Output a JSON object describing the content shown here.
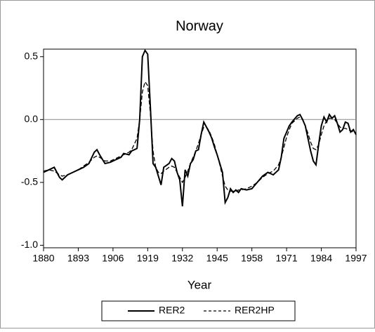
{
  "chart_data": {
    "type": "line",
    "title": "Norway",
    "x_label": "Year",
    "x": [
      1880,
      1882,
      1884,
      1886,
      1887,
      1889,
      1891,
      1893,
      1895,
      1897,
      1899,
      1900,
      1901,
      1903,
      1905,
      1907,
      1909,
      1910,
      1912,
      1913,
      1915,
      1916,
      1917,
      1918,
      1919,
      1920,
      1921,
      1922,
      1923,
      1924,
      1925,
      1927,
      1928,
      1929,
      1930,
      1931,
      1932,
      1933,
      1934,
      1935,
      1936,
      1937,
      1938,
      1939,
      1940,
      1941,
      1942,
      1943,
      1944,
      1945,
      1946,
      1947,
      1948,
      1949,
      1950,
      1951,
      1952,
      1953,
      1954,
      1956,
      1958,
      1960,
      1962,
      1964,
      1966,
      1968,
      1969,
      1970,
      1971,
      1972,
      1973,
      1975,
      1976,
      1977,
      1978,
      1979,
      1980,
      1981,
      1982,
      1983,
      1984,
      1985,
      1986,
      1987,
      1988,
      1989,
      1990,
      1991,
      1992,
      1993,
      1994,
      1995,
      1996,
      1997
    ],
    "series": [
      {
        "name": "RER2",
        "color": "#000000",
        "style": "solid",
        "values": [
          -0.42,
          -0.4,
          -0.38,
          -0.46,
          -0.48,
          -0.44,
          -0.42,
          -0.4,
          -0.38,
          -0.35,
          -0.26,
          -0.24,
          -0.28,
          -0.35,
          -0.34,
          -0.32,
          -0.3,
          -0.27,
          -0.28,
          -0.25,
          -0.23,
          0.0,
          0.5,
          0.55,
          0.52,
          0.1,
          -0.35,
          -0.38,
          -0.45,
          -0.52,
          -0.38,
          -0.35,
          -0.31,
          -0.33,
          -0.42,
          -0.48,
          -0.69,
          -0.4,
          -0.45,
          -0.35,
          -0.32,
          -0.25,
          -0.24,
          -0.12,
          -0.02,
          -0.06,
          -0.1,
          -0.15,
          -0.22,
          -0.28,
          -0.35,
          -0.42,
          -0.66,
          -0.62,
          -0.55,
          -0.58,
          -0.56,
          -0.58,
          -0.55,
          -0.56,
          -0.55,
          -0.5,
          -0.45,
          -0.42,
          -0.44,
          -0.4,
          -0.3,
          -0.15,
          -0.1,
          -0.05,
          -0.02,
          0.03,
          0.04,
          0.0,
          -0.05,
          -0.15,
          -0.25,
          -0.33,
          -0.36,
          -0.2,
          -0.05,
          0.02,
          -0.02,
          0.04,
          0.01,
          0.03,
          -0.03,
          -0.1,
          -0.08,
          -0.02,
          -0.03,
          -0.1,
          -0.08,
          -0.12
        ]
      },
      {
        "name": "RER2HP",
        "color": "#000000",
        "style": "dashed",
        "values": [
          -0.41,
          -0.4,
          -0.41,
          -0.44,
          -0.45,
          -0.44,
          -0.42,
          -0.4,
          -0.37,
          -0.34,
          -0.3,
          -0.29,
          -0.3,
          -0.33,
          -0.33,
          -0.31,
          -0.29,
          -0.28,
          -0.26,
          -0.24,
          -0.15,
          0.0,
          0.22,
          0.3,
          0.27,
          0.05,
          -0.25,
          -0.38,
          -0.42,
          -0.43,
          -0.41,
          -0.38,
          -0.37,
          -0.38,
          -0.42,
          -0.46,
          -0.5,
          -0.46,
          -0.41,
          -0.35,
          -0.3,
          -0.25,
          -0.19,
          -0.12,
          -0.06,
          -0.06,
          -0.09,
          -0.14,
          -0.2,
          -0.28,
          -0.36,
          -0.45,
          -0.53,
          -0.56,
          -0.57,
          -0.57,
          -0.57,
          -0.56,
          -0.56,
          -0.55,
          -0.53,
          -0.5,
          -0.46,
          -0.43,
          -0.41,
          -0.36,
          -0.3,
          -0.22,
          -0.14,
          -0.08,
          -0.03,
          0.01,
          0.02,
          0.0,
          -0.05,
          -0.11,
          -0.18,
          -0.23,
          -0.24,
          -0.2,
          -0.12,
          -0.05,
          -0.01,
          0.01,
          0.01,
          0.0,
          -0.03,
          -0.06,
          -0.07,
          -0.07,
          -0.08,
          -0.09,
          -0.1,
          -0.11
        ]
      }
    ],
    "xlim": [
      1880,
      1997
    ],
    "xticks": [
      1880,
      1893,
      1906,
      1919,
      1932,
      1945,
      1958,
      1971,
      1984,
      1997
    ],
    "ylim": [
      -1.02,
      0.56
    ],
    "yticks": [
      {
        "value": -1,
        "label": "-1.0"
      },
      -0.5,
      {
        "value": 0,
        "label": "0.0"
      },
      0.5
    ],
    "hline": 0,
    "legend": "bottom"
  }
}
